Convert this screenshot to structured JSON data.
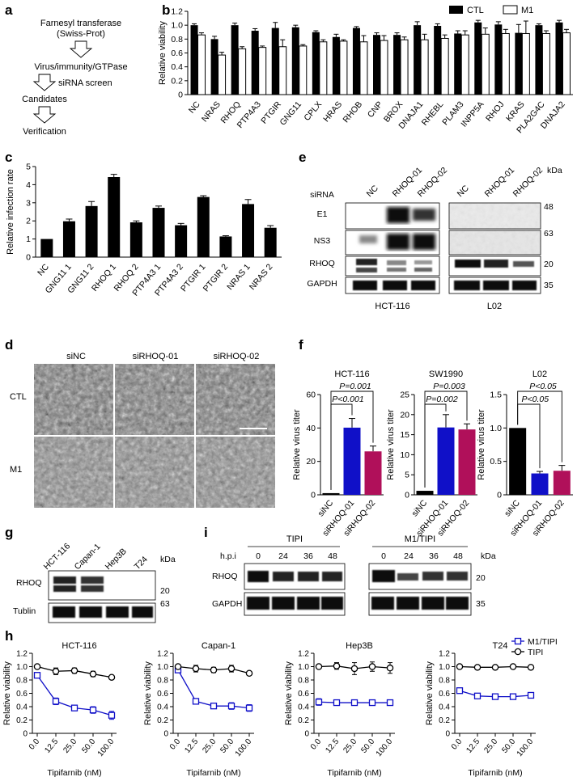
{
  "panel_labels": {
    "a": "a",
    "b": "b",
    "c": "c",
    "d": "d",
    "e": "e",
    "f": "f",
    "g": "g",
    "h": "h",
    "i": "i"
  },
  "flow": {
    "steps": [
      "Farnesyl transferase",
      "(Swiss-Prot)",
      "Virus/immunity/GTPase",
      "Candidates",
      "Verification"
    ],
    "side_label": "siRNA screen"
  },
  "colors": {
    "blue": "#1010c8",
    "magenta": "#b0105a",
    "black": "#000000",
    "white": "#ffffff"
  },
  "chart_data": [
    {
      "id": "b",
      "type": "bar",
      "ylabel": "Relative viability",
      "ylim": [
        0,
        1.2
      ],
      "yticks": [
        "0",
        "0.2",
        "0.4",
        "0.6",
        "0.8",
        "1.0",
        "1.2"
      ],
      "categories": [
        "NC",
        "NRAS",
        "RHOQ",
        "PTP4A3",
        "PTGIR",
        "GNG11",
        "CPLX",
        "HRAS",
        "RHOB",
        "CNP",
        "BROX",
        "DNAJA1",
        "RHEBL",
        "PLAM3",
        "INPP5A",
        "RHOJ",
        "KRAS",
        "PLA2G4C",
        "DNAJA2"
      ],
      "series": [
        {
          "name": "CTL",
          "values": [
            1.0,
            0.8,
            1.0,
            0.92,
            0.96,
            0.97,
            0.9,
            0.83,
            0.96,
            0.86,
            0.86,
            1.0,
            0.99,
            0.88,
            1.04,
            1.01,
            0.89,
            1.0,
            1.04
          ],
          "err": [
            0.02,
            0.04,
            0.03,
            0.03,
            0.08,
            0.03,
            0.02,
            0.04,
            0.02,
            0.03,
            0.03,
            0.05,
            0.03,
            0.04,
            0.03,
            0.04,
            0.12,
            0.02,
            0.03
          ]
        },
        {
          "name": "M1",
          "values": [
            0.86,
            0.57,
            0.66,
            0.68,
            0.69,
            0.7,
            0.76,
            0.77,
            0.76,
            0.78,
            0.79,
            0.79,
            0.81,
            0.86,
            0.87,
            0.88,
            0.88,
            0.88,
            0.89
          ],
          "err": [
            0.03,
            0.04,
            0.03,
            0.02,
            0.1,
            0.02,
            0.03,
            0.02,
            0.09,
            0.07,
            0.04,
            0.08,
            0.05,
            0.06,
            0.09,
            0.06,
            0.18,
            0.04,
            0.05
          ]
        }
      ]
    },
    {
      "id": "c",
      "type": "bar",
      "ylabel": "Relative infection rate",
      "ylim": [
        0,
        5
      ],
      "yticks": [
        "0",
        "1",
        "2",
        "3",
        "4",
        "5"
      ],
      "categories": [
        "NC",
        "GNG11 1",
        "GNG11 2",
        "RHOQ 1",
        "RHOQ 2",
        "PTP4A3 1",
        "PTP4A3 2",
        "PTGIR 1",
        "PTGIR 2",
        "NRAS 1",
        "NRAS 2"
      ],
      "values": [
        1.0,
        1.98,
        2.82,
        4.42,
        1.92,
        2.72,
        1.76,
        3.32,
        1.14,
        2.93,
        1.62
      ],
      "err": [
        0.0,
        0.12,
        0.25,
        0.15,
        0.08,
        0.1,
        0.1,
        0.07,
        0.04,
        0.25,
        0.12
      ]
    },
    {
      "id": "f1",
      "type": "bar",
      "title": "HCT-116",
      "ylabel": "Relative virus titer",
      "ylim": [
        0,
        60
      ],
      "yticks": [
        "0",
        "20",
        "40",
        "60"
      ],
      "categories": [
        "siNC",
        "siRHOQ-01",
        "siRHOQ-02"
      ],
      "values": [
        1.0,
        40.2,
        26.0
      ],
      "err": [
        0.0,
        5.5,
        3.2
      ],
      "pvalues": [
        "P=0.001",
        "P<0.001"
      ]
    },
    {
      "id": "f2",
      "type": "bar",
      "title": "SW1990",
      "ylabel": "Relative virus titer",
      "ylim": [
        0,
        25
      ],
      "yticks": [
        "0",
        "5",
        "10",
        "15",
        "20",
        "25"
      ],
      "categories": [
        "siNC",
        "siRHOQ-01",
        "siRHOQ-02"
      ],
      "values": [
        1.0,
        16.8,
        16.3
      ],
      "err": [
        0.0,
        3.2,
        1.4
      ],
      "pvalues": [
        "P=0.003",
        "P=0.002"
      ]
    },
    {
      "id": "f3",
      "type": "bar",
      "title": "L02",
      "ylabel": "Relative virus titer",
      "ylim": [
        0,
        1.5
      ],
      "yticks": [
        "0",
        "0.5",
        "1.0",
        "1.5"
      ],
      "categories": [
        "siNC",
        "siRHOQ-01",
        "siRHOQ-02"
      ],
      "values": [
        1.0,
        0.32,
        0.36
      ],
      "err": [
        0.0,
        0.03,
        0.08
      ],
      "pvalues": [
        "P<0.05",
        "P<0.05"
      ]
    },
    {
      "id": "h1",
      "type": "line",
      "title": "HCT-116",
      "xlabel": "Tipifarnib (nM)",
      "ylabel": "Relative viability",
      "ylim": [
        0,
        1.2
      ],
      "yticks": [
        "0",
        "0.2",
        "0.4",
        "0.6",
        "0.8",
        "1.0",
        "1.2"
      ],
      "x": [
        "0.0",
        "12.5",
        "25.0",
        "50.0",
        "100.0"
      ],
      "series": [
        {
          "name": "M1/TIPI",
          "values": [
            0.87,
            0.48,
            0.38,
            0.35,
            0.27
          ],
          "err": [
            0.04,
            0.05,
            0.03,
            0.05,
            0.06
          ]
        },
        {
          "name": "TIPI",
          "values": [
            1.0,
            0.93,
            0.94,
            0.89,
            0.84
          ],
          "err": [
            0.02,
            0.05,
            0.04,
            0.04,
            0.02
          ]
        }
      ]
    },
    {
      "id": "h2",
      "type": "line",
      "title": "Capan-1",
      "xlabel": "Tipifarnib (nM)",
      "ylabel": "Relative viability",
      "ylim": [
        0,
        1.2
      ],
      "yticks": [
        "0",
        "0.2",
        "0.4",
        "0.6",
        "0.8",
        "1.0",
        "1.2"
      ],
      "x": [
        "0.0",
        "12.5",
        "25.0",
        "50.0",
        "100.0"
      ],
      "series": [
        {
          "name": "M1/TIPI",
          "values": [
            0.95,
            0.48,
            0.41,
            0.41,
            0.38
          ],
          "err": [
            0.03,
            0.03,
            0.03,
            0.05,
            0.05
          ]
        },
        {
          "name": "TIPI",
          "values": [
            1.0,
            0.97,
            0.95,
            0.97,
            0.9
          ],
          "err": [
            0.02,
            0.05,
            0.04,
            0.05,
            0.02
          ]
        }
      ]
    },
    {
      "id": "h3",
      "type": "line",
      "title": "Hep3B",
      "xlabel": "Tipifarnib (nM)",
      "ylabel": "Relative viability",
      "ylim": [
        0,
        1.2
      ],
      "yticks": [
        "0",
        "0.2",
        "0.4",
        "0.6",
        "0.8",
        "1.0",
        "1.2"
      ],
      "x": [
        "0.0",
        "12.5",
        "25.0",
        "50.0",
        "100.0"
      ],
      "series": [
        {
          "name": "M1/TIPI",
          "values": [
            0.47,
            0.46,
            0.46,
            0.46,
            0.46
          ],
          "err": [
            0.05,
            0.04,
            0.04,
            0.04,
            0.04
          ]
        },
        {
          "name": "TIPI",
          "values": [
            1.0,
            1.01,
            0.97,
            1.0,
            0.98
          ],
          "err": [
            0.02,
            0.05,
            0.09,
            0.07,
            0.08
          ]
        }
      ]
    },
    {
      "id": "h4",
      "type": "line",
      "title": "T24",
      "xlabel": "Tipifarnib (nM)",
      "ylabel": "Relative viability",
      "ylim": [
        0,
        1.2
      ],
      "yticks": [
        "0",
        "0.2",
        "0.4",
        "0.6",
        "0.8",
        "1.0",
        "1.2"
      ],
      "x": [
        "0.0",
        "12.5",
        "25.0",
        "50.0",
        "100.0"
      ],
      "series": [
        {
          "name": "M1/TIPI",
          "values": [
            0.64,
            0.56,
            0.55,
            0.55,
            0.57
          ],
          "err": [
            0.03,
            0.03,
            0.04,
            0.04,
            0.04
          ]
        },
        {
          "name": "TIPI",
          "values": [
            1.0,
            0.99,
            0.99,
            1.0,
            0.99
          ],
          "err": [
            0.01,
            0.02,
            0.02,
            0.02,
            0.02
          ]
        }
      ]
    }
  ],
  "h_legend": [
    "M1/TIPI",
    "TIPI"
  ],
  "blot_e": {
    "header": "siRNA",
    "lanes_left": [
      "NC",
      "RHOQ-01",
      "RHOQ-02"
    ],
    "lanes_right": [
      "NC",
      "RHOQ-01",
      "RHOQ-02"
    ],
    "rows": [
      "E1",
      "NS3",
      "RHOQ",
      "GAPDH"
    ],
    "kda_label": "kDa",
    "kda": [
      "48",
      "63",
      "20",
      "35"
    ],
    "cells": [
      "HCT-116",
      "L02"
    ]
  },
  "micro_d": {
    "cols": [
      "siNC",
      "siRHOQ-01",
      "siRHOQ-02"
    ],
    "rows": [
      "CTL",
      "M1"
    ]
  },
  "blot_g": {
    "lanes": [
      "HCT-116",
      "Capan-1",
      "Hep3B",
      "T24"
    ],
    "rows": [
      "RHOQ",
      "Tublin"
    ],
    "kda_label": "kDa",
    "kda": [
      "20",
      "63"
    ]
  },
  "blot_i": {
    "groups": [
      "TIPI",
      "M1/TIPI"
    ],
    "hpi_label": "h.p.i",
    "times": [
      "0",
      "24",
      "36",
      "48"
    ],
    "rows": [
      "RHOQ",
      "GAPDH"
    ],
    "kda_label": "kDa",
    "kda": [
      "20",
      "35"
    ]
  }
}
